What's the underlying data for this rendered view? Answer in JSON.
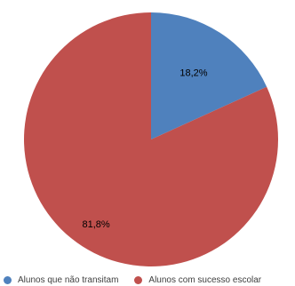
{
  "chart_data": {
    "type": "pie",
    "title": "",
    "series": [
      {
        "name": "",
        "values": [
          18.2,
          81.8
        ]
      }
    ],
    "categories": [
      "Alunos que não transitam",
      "Alunos com sucesso escolar"
    ],
    "slices": [
      {
        "label": "Alunos que não transitam",
        "value": 18.2,
        "data_label": "18,2%",
        "color": "#4F81BD"
      },
      {
        "label": "Alunos com sucesso escolar",
        "value": 81.8,
        "data_label": "81,8%",
        "color": "#C0504D"
      }
    ],
    "start_angle": "12 o'clock",
    "direction": "clockwise",
    "legend_position": "bottom"
  }
}
